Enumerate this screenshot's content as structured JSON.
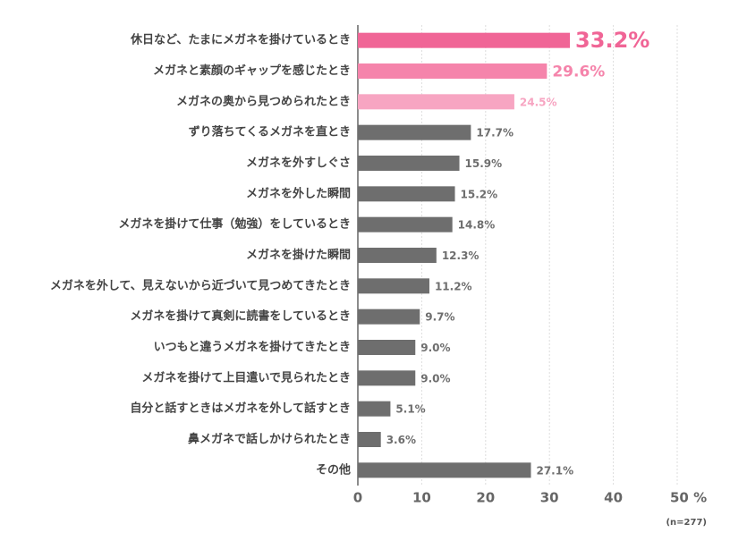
{
  "chart_data": {
    "type": "hbar",
    "categories": [
      "休日など、たまにメガネを掛けているとき",
      "メガネと素顔のギャップを感じたとき",
      "メガネの奥から見つめられたとき",
      "ずり落ちてくるメガネを直とき",
      "メガネを外すしぐさ",
      "メガネを外した瞬間",
      "メガネを掛けて仕事（勉強）をしているとき",
      "メガネを掛けた瞬間",
      "メガネを外して、見えないから近づいて見つめてきたとき",
      "メガネを掛けて真剣に読書をしているとき",
      "いつもと違うメガネを掛けてきたとき",
      "メガネを掛けて上目遣いで見られたとき",
      "自分と話すときはメガネを外して話すとき",
      "鼻メガネで話しかけられたとき",
      "その他"
    ],
    "values": [
      33.2,
      29.6,
      24.5,
      17.7,
      15.9,
      15.2,
      14.8,
      12.3,
      11.2,
      9.7,
      9.0,
      9.0,
      5.1,
      3.6,
      27.1
    ],
    "value_labels": [
      "33.2%",
      "29.6%",
      "24.5%",
      "17.7%",
      "15.9%",
      "15.2%",
      "14.8%",
      "12.3%",
      "11.2%",
      "9.7%",
      "9.0%",
      "9.0%",
      "5.1%",
      "3.6%",
      "27.1%"
    ],
    "colors": [
      "#f06596",
      "#f584ab",
      "#f7a5c2",
      "#6e6e6e",
      "#6e6e6e",
      "#6e6e6e",
      "#6e6e6e",
      "#6e6e6e",
      "#6e6e6e",
      "#6e6e6e",
      "#6e6e6e",
      "#6e6e6e",
      "#6e6e6e",
      "#6e6e6e",
      "#6e6e6e"
    ],
    "xlim": [
      0,
      50
    ],
    "xticks": [
      0,
      10,
      20,
      30,
      40,
      {
        "value": 50,
        "label": "50 %"
      }
    ],
    "grid": true,
    "note": "(n=277)"
  }
}
